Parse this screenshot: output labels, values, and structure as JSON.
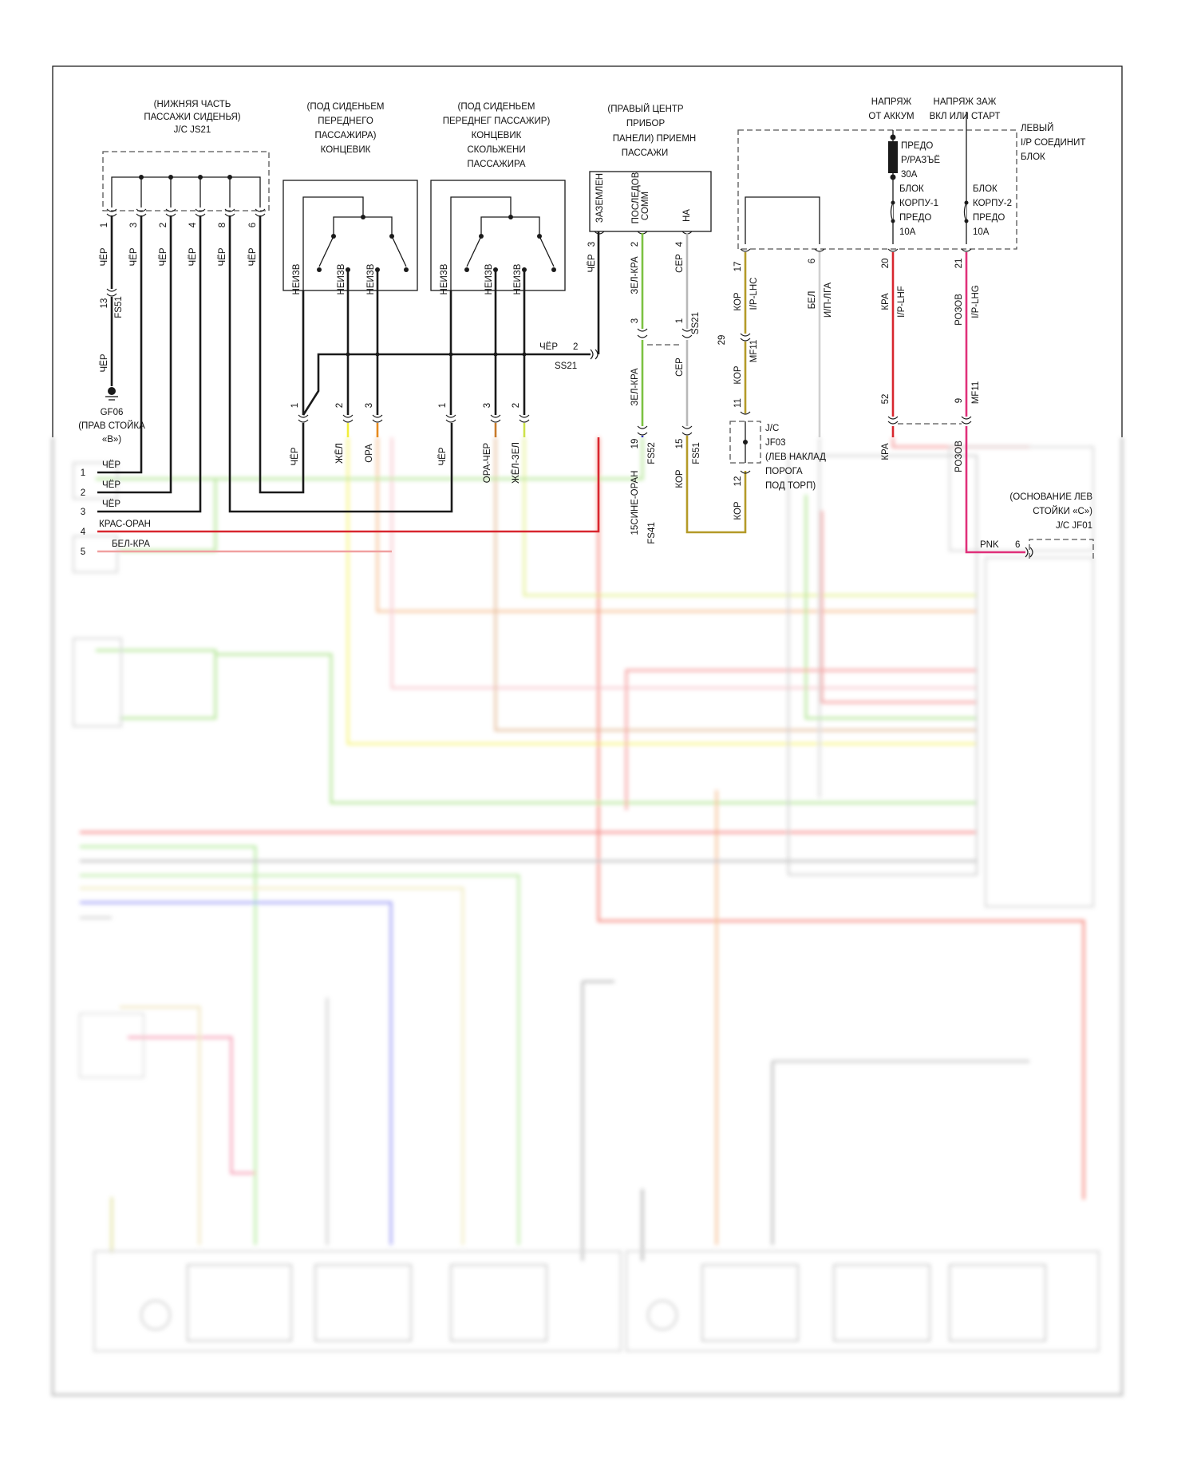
{
  "colors": {
    "black": "#1a1a1a",
    "yellow": "#f2ee3a",
    "orange": "#e68a1e",
    "orange_black": "#c87a2a",
    "yellow_green": "#cde24a",
    "green_red": "#7cc242",
    "grey": "#b8b8b8",
    "blue_orange": "#3030c0",
    "brown": "#b49a28",
    "white": "#d0d0d0",
    "red": "#d8262e",
    "pink": "#e0307a",
    "red_orange": "#e03a22",
    "white_red": "#f0a0a0"
  },
  "js21": {
    "title": [
      "(НИЖНЯЯ ЧАСТЬ",
      "ПАССАЖИ СИДЕНЬЯ)",
      "J/C JS21"
    ],
    "pins": [
      "1",
      "3",
      "2",
      "4",
      "8",
      "6"
    ],
    "wire_color": "ЧЁР",
    "fs51_pin": "13",
    "fs51": "FS51",
    "fs51_wire": "ЧЁР",
    "ground": [
      "GF06",
      "(ПРАВ СТОЙКА",
      "«B»)"
    ]
  },
  "left_rows": [
    {
      "num": "1",
      "label": "ЧЁР"
    },
    {
      "num": "2",
      "label": "ЧЁР"
    },
    {
      "num": "3",
      "label": "ЧЁР"
    },
    {
      "num": "4",
      "label": "КРАС-ОРАН"
    },
    {
      "num": "5",
      "label": "БЕЛ-КРА"
    }
  ],
  "switch1": {
    "title": [
      "(ПОД СИДЕНЬЕМ",
      "ПЕРЕДНЕГО",
      "ПАССАЖИРА)",
      "КОНЦЕВИК"
    ],
    "wire_top": "НЕИЗВ",
    "pins": [
      "1",
      "2",
      "3"
    ],
    "wires": [
      "ЧЁР",
      "ЖЁЛ",
      "ОРА"
    ]
  },
  "switch2": {
    "title": [
      "(ПОД СИДЕНЬЕМ",
      "ПЕРЕДНЕГ ПАССАЖИР)",
      "КОНЦЕВИК",
      "СКОЛЬЖЕНИ",
      "ПАССАЖИРА"
    ],
    "wire_top": "НЕИЗВ",
    "pins": [
      "1",
      "3",
      "2"
    ],
    "wires": [
      "ЧЁР",
      "ОРА-ЧЕР",
      "ЖЁЛ-ЗЕЛ"
    ]
  },
  "ss21": {
    "wire": "ЧЁР",
    "pin": "2",
    "name": "SS21"
  },
  "receiver": {
    "title": [
      "(ПРАВЫЙ ЦЕНТР",
      "ПРИБОР",
      "ПАНЕЛИ) ПРИЕМН",
      "ПАССАЖИ"
    ],
    "pin_names": [
      "ЗАЗЕМЛЕН",
      "ПОСЛЕДОВ",
      "СОММ",
      "НА"
    ],
    "gnd_wire": "ЧЁР",
    "gnd_pin": "3",
    "comm_wire": "ЗЕЛ-КРА",
    "comm_pin": "2",
    "na_wire": "СЕР",
    "na_pin": "4",
    "ss21_pin_a": "3",
    "ss21_pin_b": "1",
    "ss21": "SS21",
    "comm_wire2": "ЗЕЛ-КРА",
    "na_wire2": "СЕР",
    "fs52_pin": "19",
    "fs52": "FS52",
    "fs51_pin": "15",
    "fs51": "FS51",
    "fs41_wire": "15СИНЕ-ОРАН",
    "fs41": "FS41",
    "kor_wire": "КОР"
  },
  "ip_block": {
    "batt": [
      "НАПРЯЖ",
      "ОТ АККУМ"
    ],
    "ign": [
      "НАПРЯЖ ЗАЖ",
      "ВКЛ ИЛИ СТАРТ"
    ],
    "name": [
      "ЛЕВЫЙ",
      "I/P СОЕДИНИТ",
      "БЛОК"
    ],
    "fuse30": [
      "ПРЕДО",
      "Р/РАЗЪЁ",
      "30A"
    ],
    "fuse1": [
      "БЛОК",
      "КОРПУ-1",
      "ПРЕДО",
      "10A"
    ],
    "fuse2": [
      "БЛОК",
      "КОРПУ-2",
      "ПРЕДО",
      "10A"
    ]
  },
  "wire17": {
    "pin": "17",
    "color": "КОР",
    "circuit": "I/P-LHC",
    "mf_pin": "29",
    "mf": "MF11",
    "color2": "КОР",
    "jf_pin_a": "11",
    "jf_pin_b": "12",
    "color3": "КОР"
  },
  "jf03": [
    "J/C",
    "JF03",
    "(ЛЕВ НАКЛАД",
    "ПОРОГА",
    "ПОД ТОРП)"
  ],
  "wire6": {
    "pin": "6",
    "color": "БЕЛ",
    "circuit": "И/П-ЛГА"
  },
  "wire20": {
    "pin": "20",
    "color": "КРА",
    "circuit": "I/P-LHF",
    "pin2": "52",
    "color2": "КРА"
  },
  "wire21": {
    "pin": "21",
    "color": "РОЗОВ",
    "circuit": "I/P-LHG",
    "pin2": "9",
    "mf": "MF11",
    "color2": "РОЗОВ"
  },
  "jf01": {
    "title": [
      "(ОСНОВАНИЕ ЛЕВ",
      "СТОЙКИ «С»)",
      "J/C JF01"
    ],
    "wire": "PNK",
    "pin": "6"
  }
}
